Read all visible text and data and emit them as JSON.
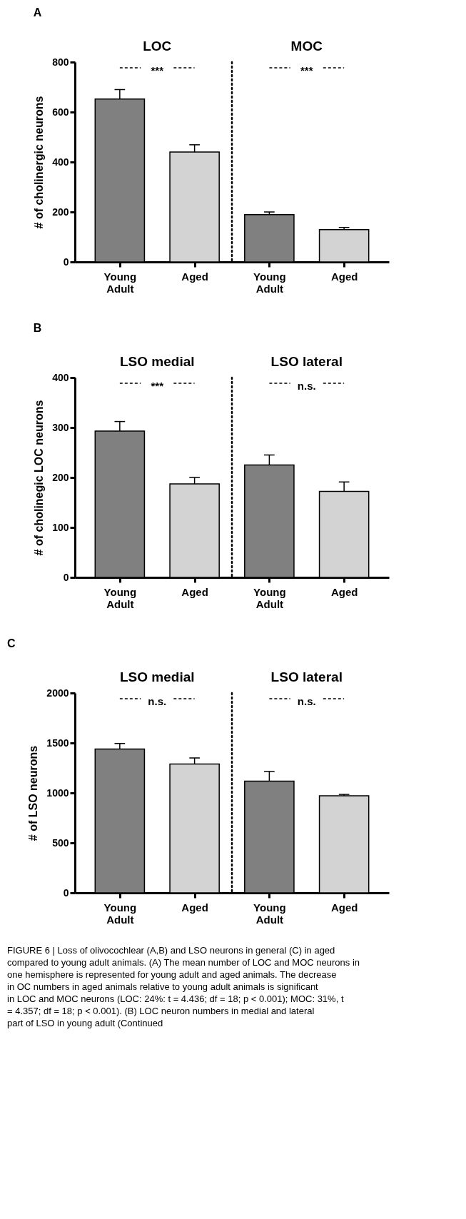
{
  "chart_data": [
    {
      "type": "bar",
      "title": "A",
      "ylabel": "# of cholinergic neurons",
      "categories": [
        "Young Adult",
        "Aged",
        "Young Adult",
        "Aged"
      ],
      "values": [
        652,
        440,
        189,
        129
      ],
      "colors": [
        "#808080",
        "#d3d3d3",
        "#808080",
        "#d3d3d3"
      ],
      "errors": [
        [
          652,
          690
        ],
        [
          440,
          469
        ],
        [
          189,
          200
        ],
        [
          129,
          138
        ]
      ],
      "ylim": [
        0,
        800
      ],
      "yticks": [
        0,
        200,
        400,
        600,
        800
      ],
      "grid": false,
      "annotations": [
        "LOC",
        "MOC",
        "***",
        "***"
      ]
    },
    {
      "type": "bar",
      "title": "B",
      "ylabel": "# of cholinegic LOC neurons",
      "categories": [
        "Young Adult",
        "Aged",
        "Young Adult",
        "Aged"
      ],
      "values": [
        293,
        187,
        225,
        172
      ],
      "colors": [
        "#808080",
        "#d3d3d3",
        "#808080",
        "#d3d3d3"
      ],
      "errors": [
        [
          293,
          312
        ],
        [
          187,
          200
        ],
        [
          225,
          245
        ],
        [
          172,
          191
        ]
      ],
      "ylim": [
        0,
        400
      ],
      "yticks": [
        0,
        100,
        200,
        300,
        400
      ],
      "grid": false,
      "annotations": [
        "LSO medial",
        "LSO lateral",
        "***",
        "n.s."
      ]
    },
    {
      "type": "bar",
      "title": "C",
      "ylabel": "# of LSO neurons",
      "categories": [
        "Young Adult",
        "Aged",
        "Young Adult",
        "Aged"
      ],
      "values": [
        1440,
        1289,
        1117,
        971
      ],
      "colors": [
        "#808080",
        "#d3d3d3",
        "#808080",
        "#d3d3d3"
      ],
      "errors": [
        [
          1440,
          1495
        ],
        [
          1289,
          1350
        ],
        [
          1117,
          1215
        ],
        [
          971,
          985
        ]
      ],
      "ylim": [
        0,
        2000
      ],
      "yticks": [
        0,
        500,
        1000,
        1500,
        2000
      ],
      "grid": false,
      "annotations": [
        "LSO medial",
        "LSO lateral",
        "n.s.",
        "n.s.",
        "FIGURE 6 | Loss of olivocochlear (A,B) and LSO neurons in general (C) in aged compared to young adult animals. (A) The mean number of LOC and MOC neurons in one hemisphere is represented for young adult and aged animals. The decrease in OC numbers in aged animals relative to young adult animals is significant in LOC and MOC neurons (LOC: 24%: t = 4.436; df = 18; p < 0.001); MOC: 31%, t = 4.357; df = 18; p < 0.001). (B) LOC neuron numbers in medial and lateral part of LSO in young adult (Continued"
      ]
    }
  ]
}
